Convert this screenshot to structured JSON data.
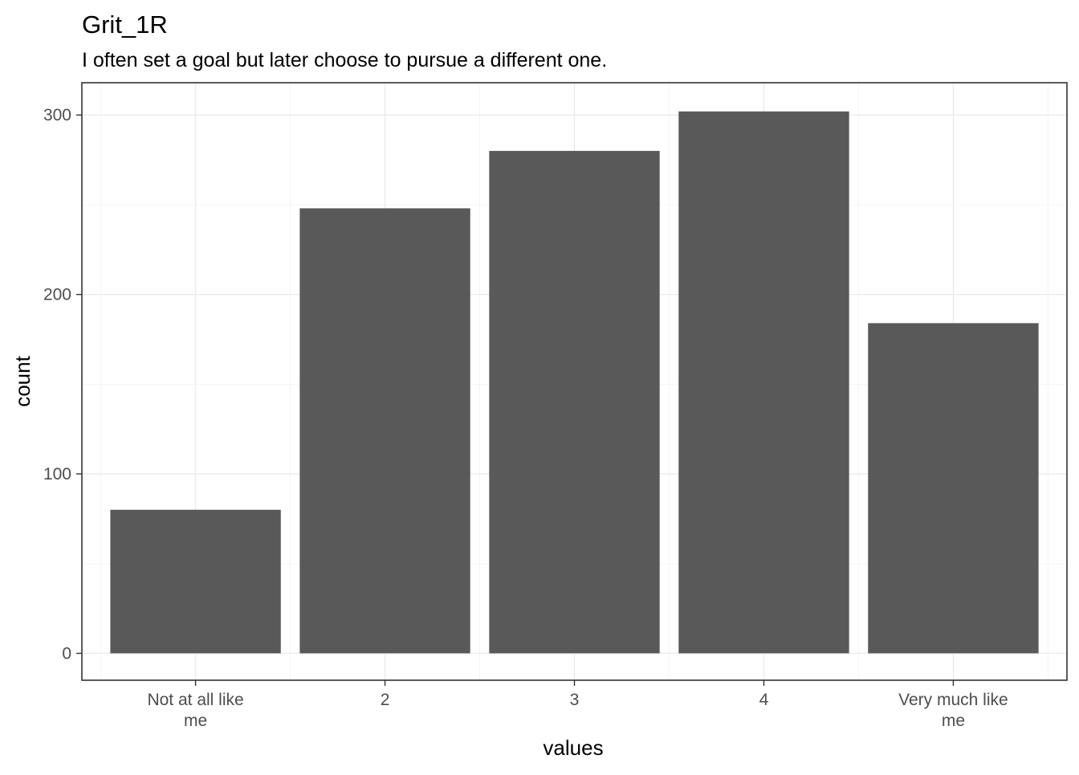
{
  "chart_data": {
    "type": "bar",
    "title": "Grit_1R",
    "subtitle": "I often set a goal but later choose to pursue a different one.",
    "xlabel": "values",
    "ylabel": "count",
    "categories": [
      [
        "Not at all like",
        "me"
      ],
      [
        "2"
      ],
      [
        "3"
      ],
      [
        "4"
      ],
      [
        "Very much like",
        "me"
      ]
    ],
    "values": [
      80,
      248,
      280,
      302,
      184
    ],
    "ylim": [
      -15,
      318
    ],
    "yticks": [
      0,
      100,
      200,
      300
    ],
    "ytick_labels": [
      "0",
      "100",
      "200",
      "300"
    ],
    "grid": true,
    "bar_color": "#595959"
  }
}
